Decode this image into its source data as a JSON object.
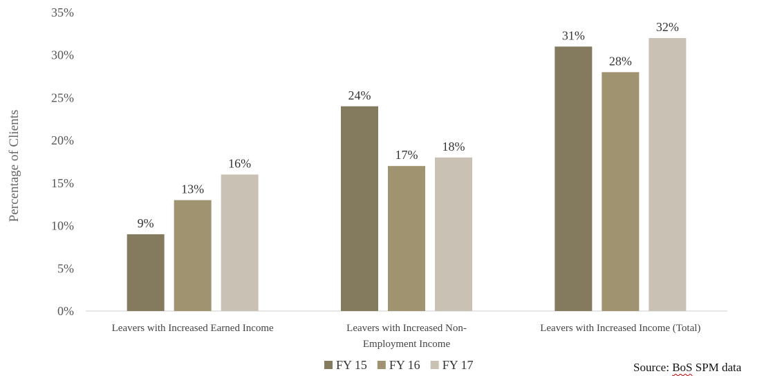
{
  "chart_data": {
    "type": "bar",
    "title": "",
    "xlabel": "",
    "ylabel": "Percentage of Clients",
    "ylim": [
      0,
      35
    ],
    "y_ticks": [
      "0%",
      "5%",
      "10%",
      "15%",
      "20%",
      "25%",
      "30%",
      "35%"
    ],
    "categories": [
      [
        "Leavers with Increased Earned Income"
      ],
      [
        "Leavers with Increased Non-",
        "Employment Income"
      ],
      [
        "Leavers with Increased Income (Total)"
      ]
    ],
    "series": [
      {
        "name": "FY 15",
        "color": "#847a5e",
        "values": [
          9,
          24,
          31
        ],
        "labels": [
          "9%",
          "24%",
          "31%"
        ]
      },
      {
        "name": "FY 16",
        "color": "#a09370",
        "values": [
          13,
          17,
          28
        ],
        "labels": [
          "13%",
          "17%",
          "28%"
        ]
      },
      {
        "name": "FY 17",
        "color": "#c9c2b4",
        "values": [
          16,
          18,
          32
        ],
        "labels": [
          "16%",
          "18%",
          "32%"
        ]
      }
    ],
    "grid": false,
    "legend_position": "bottom"
  },
  "source": {
    "prefix": "Source: ",
    "org": "BoS",
    "suffix": " SPM data"
  }
}
